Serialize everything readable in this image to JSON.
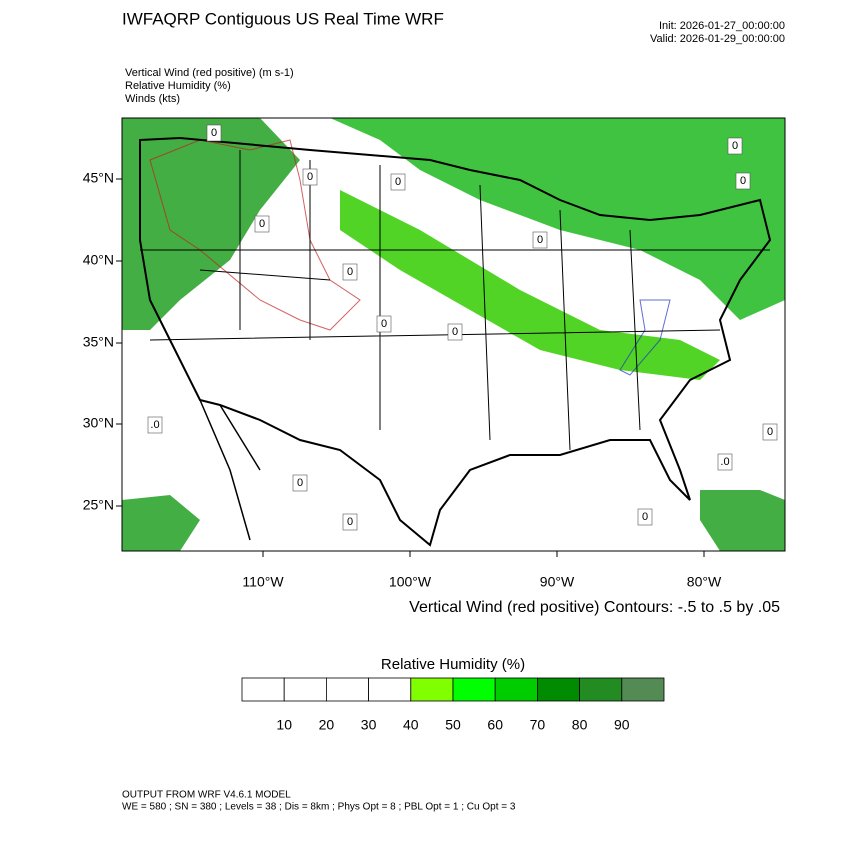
{
  "header": {
    "title": "IWFAQRP Contiguous US Real Time WRF",
    "init": "Init: 2026-01-27_00:00:00",
    "valid": "Valid: 2026-01-29_00:00:00"
  },
  "fields": [
    "Vertical Wind (red positive)   (m s-1)",
    "Relative Humidity   (%)",
    "Winds   (kts)"
  ],
  "map": {
    "lat_labels": [
      "45°N",
      "40°N",
      "35°N",
      "30°N",
      "25°N"
    ],
    "lon_labels": [
      "110°W",
      "100°W",
      "90°W",
      "80°W"
    ],
    "contour_labels": [
      "0",
      "0",
      "0",
      "0",
      "0",
      "0",
      "0",
      "0",
      "0",
      "0",
      ".0",
      ".0",
      "0",
      "0",
      "0",
      "0"
    ],
    "contour_info": "Vertical Wind (red positive) Contours: -.5 to .5 by .05"
  },
  "colorbar": {
    "title": "Relative Humidity  (%)",
    "colors": [
      "#ffffff",
      "#ffffff",
      "#ffffff",
      "#ffffff",
      "#80ff00",
      "#00ff00",
      "#00cd00",
      "#008b00",
      "#228b22",
      "#548b54"
    ],
    "ticks": [
      10,
      20,
      30,
      40,
      50,
      60,
      70,
      80,
      90
    ]
  },
  "footer": {
    "line1": "OUTPUT FROM WRF V4.6.1 MODEL",
    "line2": "WE = 580 ; SN = 380 ; Levels = 38 ; Dis = 8km ; Phys Opt = 8 ; PBL Opt = 1 ; Cu Opt = 3"
  }
}
